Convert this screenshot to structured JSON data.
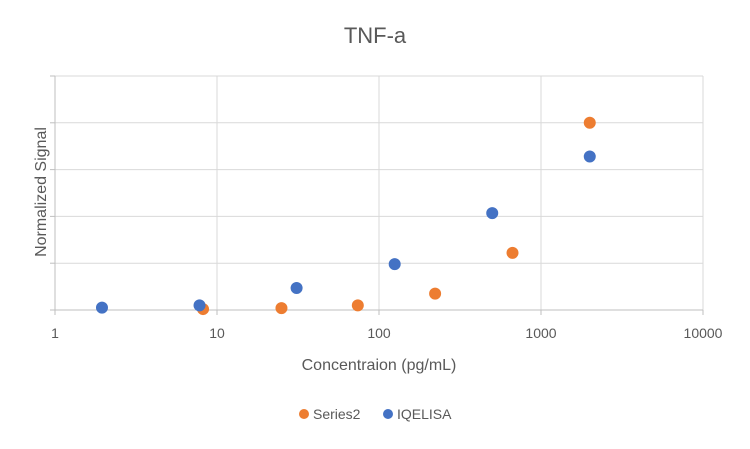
{
  "chart_data": {
    "type": "scatter",
    "title": "TNF-a",
    "xlabel": "Concentraion (pg/mL)",
    "ylabel": "Normalized Signal",
    "x_scale": "log",
    "xlim": [
      1,
      10000
    ],
    "ylim": [
      0,
      5
    ],
    "x_tick_labels": [
      "1",
      "10",
      "100",
      "1000",
      "10000"
    ],
    "x_tick_values": [
      1,
      10,
      100,
      1000,
      10000
    ],
    "y_gridlines": [
      0,
      1,
      2,
      3,
      4,
      5
    ],
    "y_tick_labels_shown": false,
    "grid": true,
    "legend_position": "bottom",
    "series": [
      {
        "name": "Series2",
        "color": "#ED7D31",
        "points": [
          {
            "x": 8.2,
            "y": 0.02
          },
          {
            "x": 25,
            "y": 0.04
          },
          {
            "x": 74,
            "y": 0.1
          },
          {
            "x": 222,
            "y": 0.35
          },
          {
            "x": 667,
            "y": 1.22
          },
          {
            "x": 2000,
            "y": 4.0
          }
        ]
      },
      {
        "name": "IQELISA",
        "color": "#4472C4",
        "points": [
          {
            "x": 1.95,
            "y": 0.05
          },
          {
            "x": 7.8,
            "y": 0.1
          },
          {
            "x": 31,
            "y": 0.47
          },
          {
            "x": 125,
            "y": 0.98
          },
          {
            "x": 500,
            "y": 2.07
          },
          {
            "x": 2000,
            "y": 3.28
          }
        ]
      }
    ]
  }
}
